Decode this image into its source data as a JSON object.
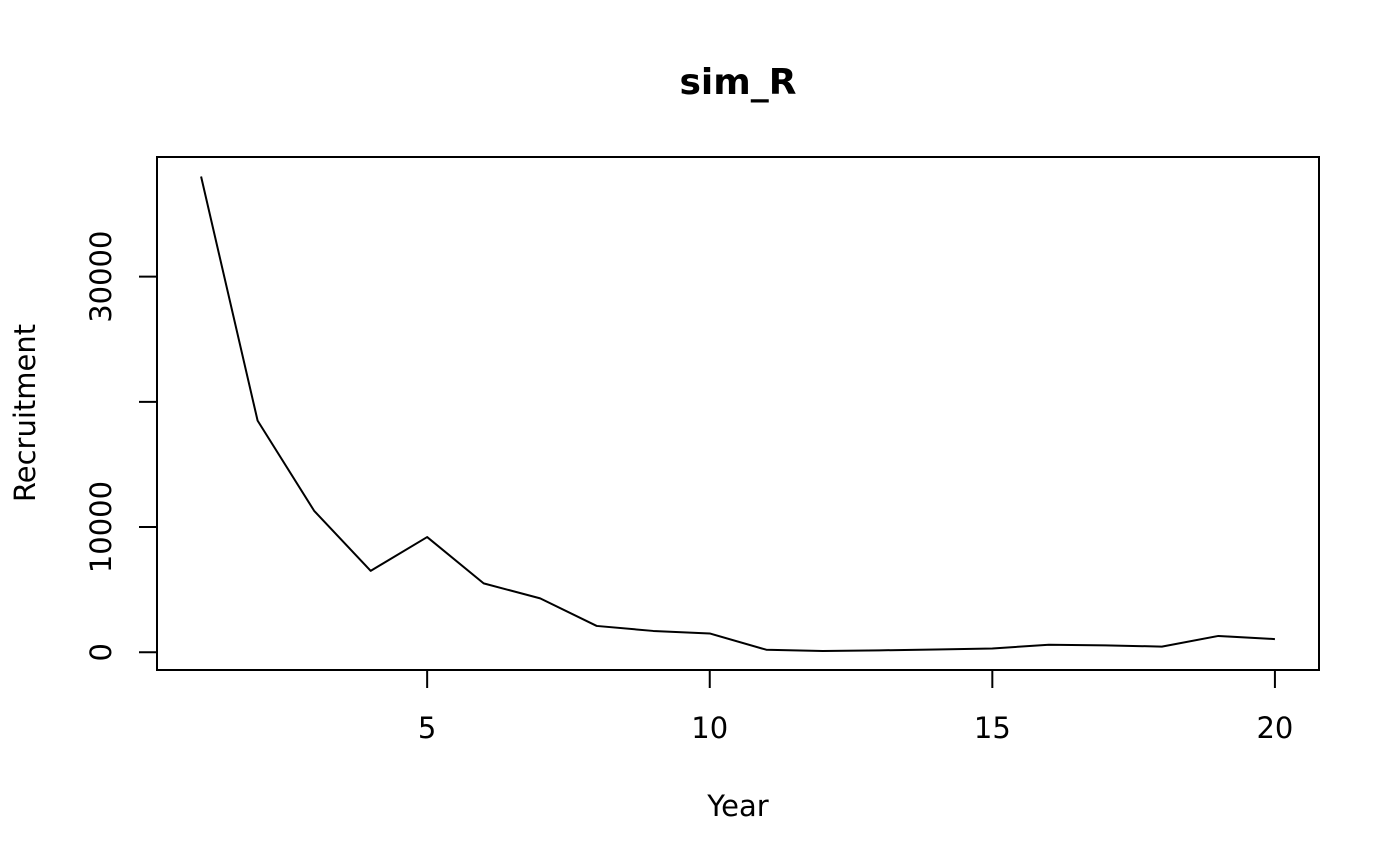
{
  "chart_data": {
    "type": "line",
    "title": "sim_R",
    "xlabel": "Year",
    "ylabel": "Recruitment",
    "x": [
      1,
      2,
      3,
      4,
      5,
      6,
      7,
      8,
      9,
      10,
      11,
      12,
      13,
      14,
      15,
      16,
      17,
      18,
      19,
      20
    ],
    "series": [
      {
        "values": [
          38000,
          18500,
          11300,
          6500,
          9200,
          5500,
          4300,
          2100,
          1700,
          1500,
          200,
          100,
          150,
          220,
          300,
          600,
          550,
          450,
          1300,
          1050
        ]
      }
    ],
    "xlim": [
      0.22,
      20.78
    ],
    "ylim": [
      -1420,
      39560
    ],
    "x_ticks": [
      5,
      10,
      15,
      20
    ],
    "y_ticks": [
      0,
      10000,
      20000,
      30000
    ],
    "y_tick_labels": [
      "0",
      "10000",
      "",
      "30000"
    ],
    "x_tick_labels": [
      "5",
      "10",
      "15",
      "20"
    ],
    "grid": false,
    "line_color": "#000000"
  }
}
